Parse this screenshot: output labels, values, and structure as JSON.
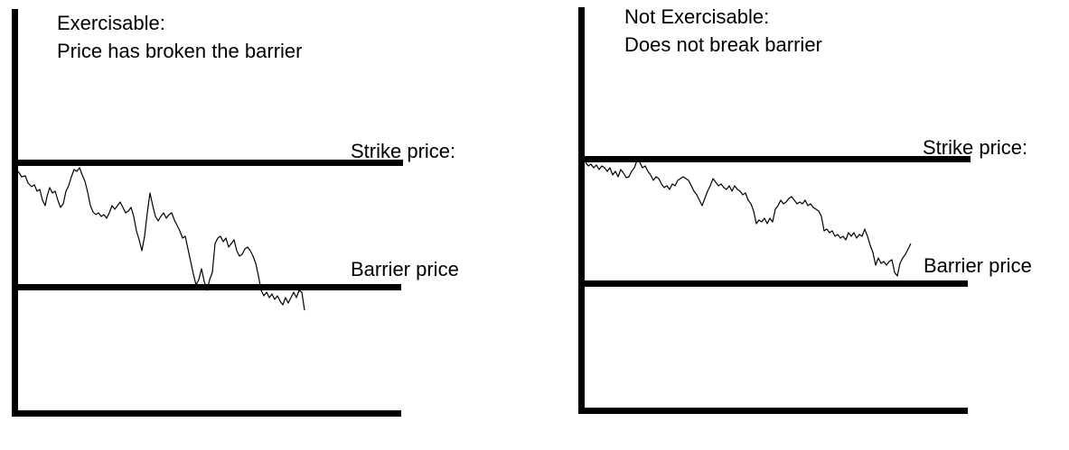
{
  "panels": [
    {
      "title_line1": "Exercisable:",
      "title_line2": "Price has broken the barrier",
      "strike_label": "Strike price:",
      "barrier_label": "Barrier price"
    },
    {
      "title_line1": "Not Exercisable:",
      "title_line2": "Does not break barrier",
      "strike_label": "Strike price:",
      "barrier_label": "Barrier price"
    }
  ],
  "line_color": "#000000"
}
